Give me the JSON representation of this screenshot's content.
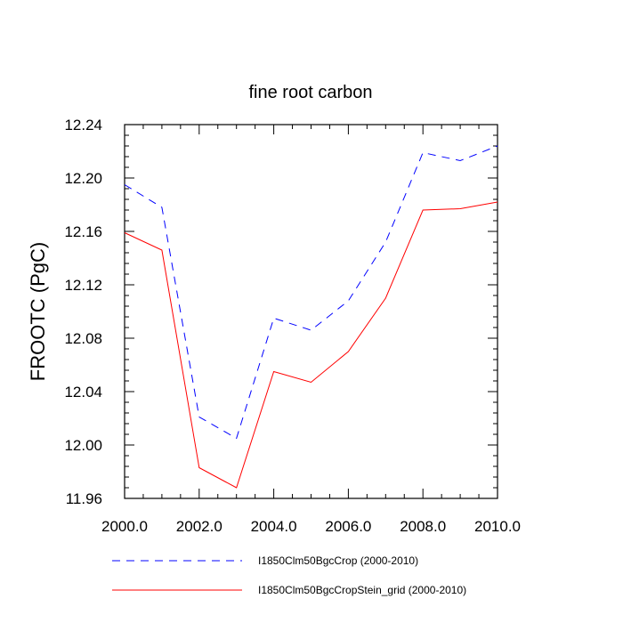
{
  "chart_data": {
    "type": "line",
    "title": "fine root carbon",
    "xlabel": "",
    "ylabel": "FROOTC  (PgC)",
    "xlim": [
      2000,
      2010
    ],
    "ylim": [
      11.96,
      12.24
    ],
    "x_tick_labels": [
      "2000.0",
      "2002.0",
      "2004.0",
      "2006.0",
      "2008.0",
      "2010.0"
    ],
    "y_tick_labels": [
      "11.96",
      "12.00",
      "12.04",
      "12.08",
      "12.12",
      "12.16",
      "12.20",
      "12.24"
    ],
    "grid": false,
    "legend_position": "bottom",
    "x": [
      2000,
      2001,
      2002,
      2003,
      2004,
      2005,
      2006,
      2007,
      2008,
      2009,
      2010
    ],
    "series": [
      {
        "name": "I1850Clm50BgcCrop (2000-2010)",
        "values": [
          12.195,
          12.178,
          12.021,
          12.005,
          12.095,
          12.086,
          12.108,
          12.152,
          12.219,
          12.213,
          12.224
        ],
        "color": "#0000ff",
        "dashed": true
      },
      {
        "name": "I1850Clm50BgcCropStein_grid (2000-2010)",
        "values": [
          12.159,
          12.146,
          11.983,
          11.968,
          12.055,
          12.047,
          12.07,
          12.11,
          12.176,
          12.177,
          12.182
        ],
        "color": "#ff0000",
        "dashed": false
      }
    ]
  }
}
